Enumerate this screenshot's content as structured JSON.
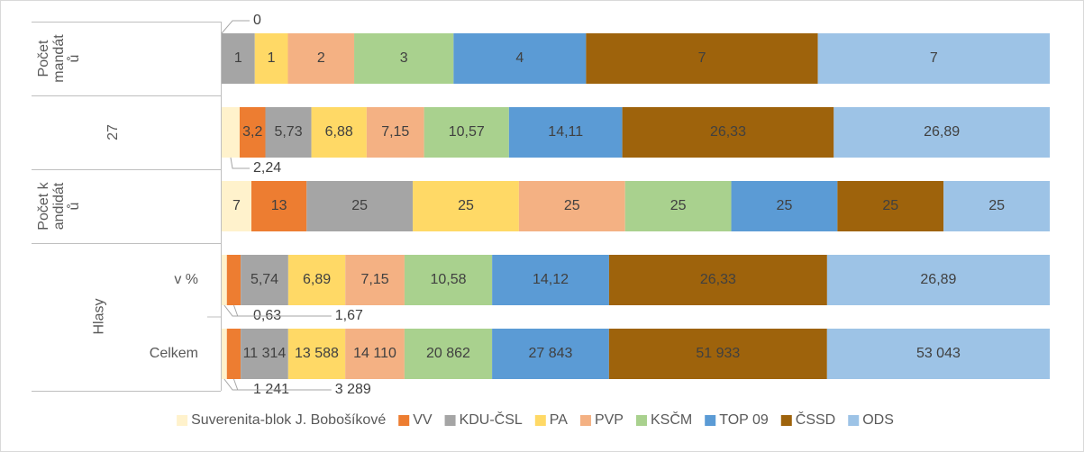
{
  "chart_data": {
    "type": "stacked-bar-100",
    "categories": [
      "Počet mandátů",
      "27",
      "Počet kandidátů",
      "v %",
      "Celkem"
    ],
    "category_groups": [
      {
        "label": "Hlasy",
        "categories": [
          "v %",
          "Celkem"
        ]
      }
    ],
    "series": [
      {
        "name": "Suverenita-blok J. Bobošíkové",
        "color": "#fff2cc",
        "values": [
          0,
          2.24,
          7,
          0.63,
          1241
        ],
        "value_labels": [
          "0",
          "2,24",
          "7",
          "0,63",
          "1 241"
        ]
      },
      {
        "name": "VV",
        "color": "#ed7d31",
        "values": [
          null,
          3.2,
          13,
          1.67,
          3289
        ],
        "value_labels": [
          null,
          "3,2",
          "13",
          "1,67",
          "3 289"
        ]
      },
      {
        "name": "KDU-ČSL",
        "color": "#a5a5a5",
        "values": [
          1,
          5.73,
          25,
          5.74,
          11314
        ],
        "value_labels": [
          "1",
          "5,73",
          "25",
          "5,74",
          "11 314"
        ]
      },
      {
        "name": "PA",
        "color": "#ffd966",
        "values": [
          1,
          6.88,
          25,
          6.89,
          13588
        ],
        "value_labels": [
          "1",
          "6,88",
          "25",
          "6,89",
          "13 588"
        ]
      },
      {
        "name": "PVP",
        "color": "#f4b183",
        "values": [
          2,
          7.15,
          25,
          7.15,
          14110
        ],
        "value_labels": [
          "2",
          "7,15",
          "25",
          "7,15",
          "14 110"
        ]
      },
      {
        "name": "KSČM",
        "color": "#a9d18e",
        "values": [
          3,
          10.57,
          25,
          10.58,
          20862
        ],
        "value_labels": [
          "3",
          "10,57",
          "25",
          "10,58",
          "20 862"
        ]
      },
      {
        "name": "TOP 09",
        "color": "#5b9bd5",
        "values": [
          4,
          14.11,
          25,
          14.12,
          27843
        ],
        "value_labels": [
          "4",
          "14,11",
          "25",
          "14,12",
          "27 843"
        ]
      },
      {
        "name": "ČSSD",
        "color": "#9e630c",
        "values": [
          7,
          26.33,
          25,
          26.33,
          51933
        ],
        "value_labels": [
          "7",
          "26,33",
          "25",
          "26,33",
          "51 933"
        ]
      },
      {
        "name": "ODS",
        "color": "#9dc3e6",
        "values": [
          7,
          26.89,
          25,
          26.89,
          53043
        ],
        "value_labels": [
          "7",
          "26,89",
          "25",
          "26,89",
          "53 043"
        ]
      }
    ],
    "legend": "bottom"
  }
}
